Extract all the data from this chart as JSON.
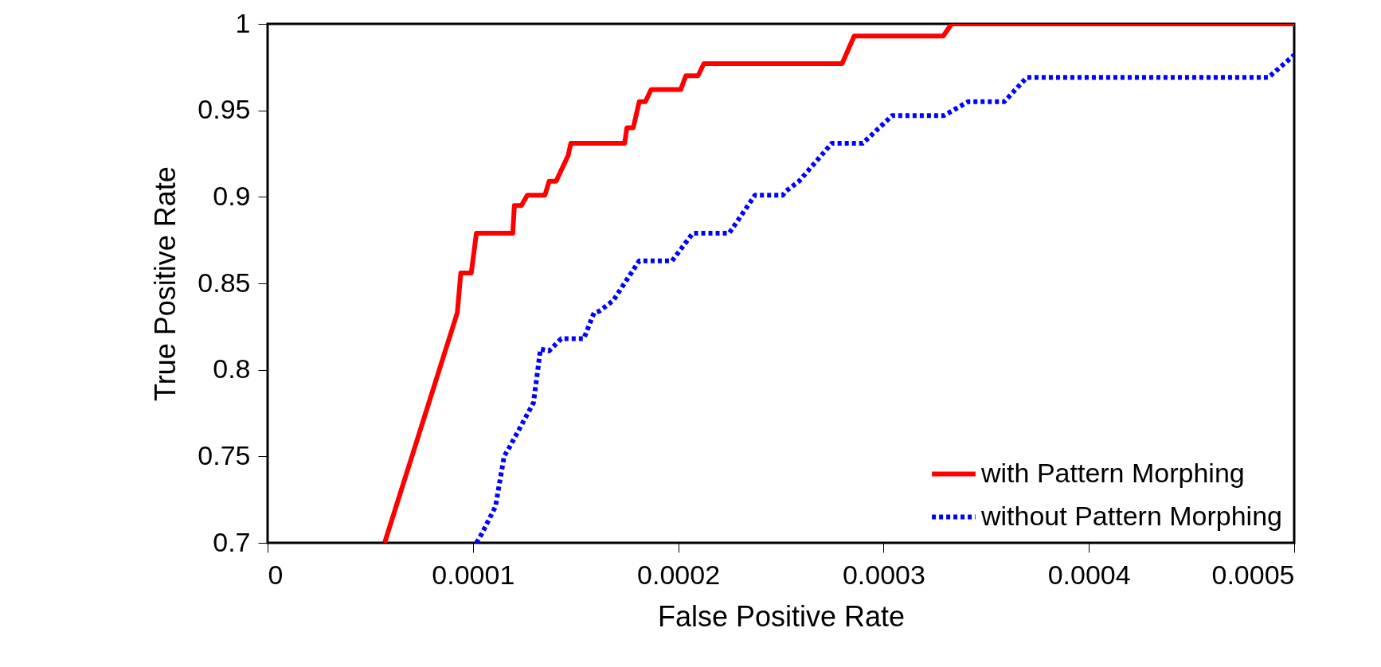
{
  "chart_data": {
    "type": "line",
    "xlabel": "False Positive Rate",
    "ylabel": "True Positive Rate",
    "xlim": [
      0,
      0.0005
    ],
    "ylim": [
      0.7,
      1
    ],
    "xticks": [
      0,
      0.0001,
      0.0002,
      0.0003,
      0.0004,
      0.0005
    ],
    "yticks": [
      0.7,
      0.75,
      0.8,
      0.85,
      0.9,
      0.95,
      1
    ],
    "grid": false,
    "legend": "bottom right",
    "marker": "none",
    "series": [
      {
        "name": "with Pattern Morphing",
        "color": "#ff0000",
        "line_style": "solid",
        "x": [
          5.7e-05,
          9.24e-05,
          9.41e-05,
          9.92e-05,
          0.0001017,
          0.0001194,
          0.0001202,
          0.0001236,
          0.0001265,
          0.0001351,
          0.0001371,
          0.0001405,
          0.0001464,
          0.0001477,
          0.0001739,
          0.000175,
          0.0001781,
          0.000181,
          0.000184,
          0.0001868,
          0.0002012,
          0.0002037,
          0.0002096,
          0.0002125,
          0.0002798,
          0.0002857,
          0.0003291,
          0.0003331,
          0.0005
        ],
        "values": [
          0.7,
          0.833,
          0.856,
          0.856,
          0.879,
          0.879,
          0.895,
          0.895,
          0.901,
          0.901,
          0.909,
          0.909,
          0.924,
          0.931,
          0.931,
          0.94,
          0.94,
          0.955,
          0.955,
          0.962,
          0.962,
          0.97,
          0.97,
          0.977,
          0.977,
          0.993,
          0.993,
          1,
          1
        ]
      },
      {
        "name": "without Pattern Morphing",
        "color": "#0000ff",
        "line_style": "dotted",
        "x": [
          0.0001017,
          0.0001042,
          0.000111,
          0.0001152,
          0.0001177,
          0.0001295,
          0.0001329,
          0.0001371,
          0.000143,
          0.000154,
          0.000159,
          0.0001616,
          0.0001683,
          0.000181,
          0.000197,
          0.0002071,
          0.0002248,
          0.0002374,
          0.0002509,
          0.0002521,
          0.0002588,
          0.0002748,
          0.0002899,
          0.0003042,
          0.0003294,
          0.0003412,
          0.0003588,
          0.0003697,
          0.0004874,
          0.0005
        ],
        "values": [
          0.7,
          0.705,
          0.721,
          0.75,
          0.755,
          0.781,
          0.812,
          0.811,
          0.818,
          0.818,
          0.833,
          0.834,
          0.84,
          0.863,
          0.863,
          0.879,
          0.879,
          0.901,
          0.901,
          0.903,
          0.909,
          0.931,
          0.931,
          0.947,
          0.947,
          0.955,
          0.955,
          0.969,
          0.969,
          0.982
        ]
      }
    ]
  }
}
